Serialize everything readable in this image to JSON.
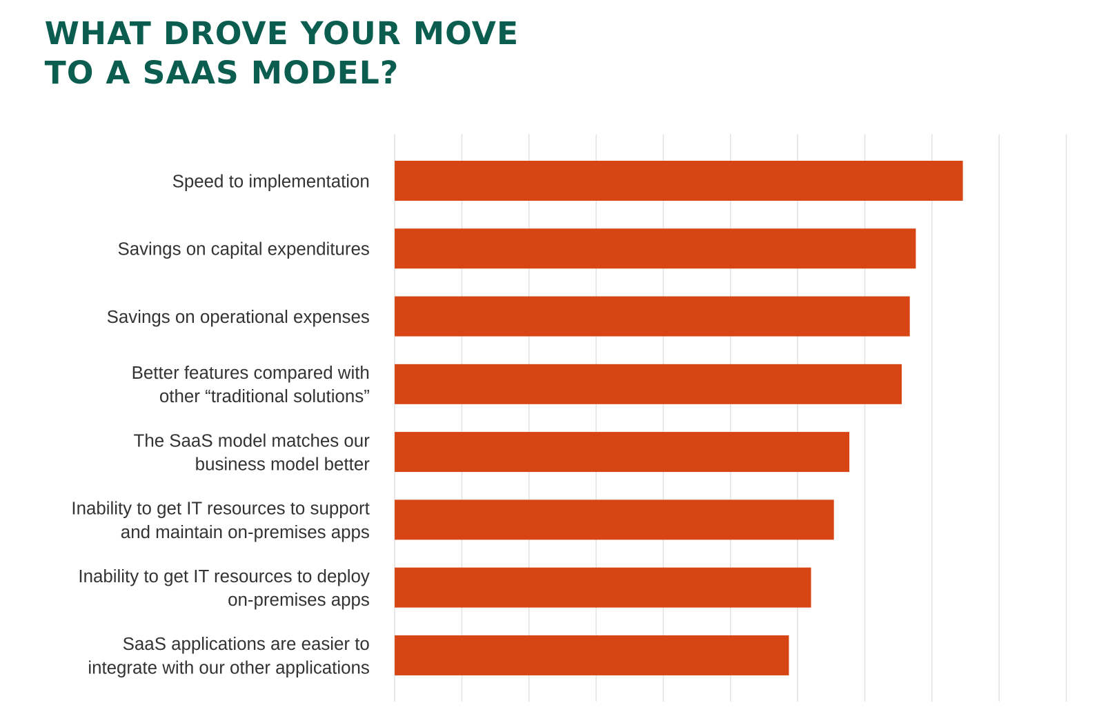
{
  "chart_data": {
    "type": "bar",
    "orientation": "horizontal",
    "title": [
      "WHAT DROVE YOUR MOVE",
      "TO A SAAS MODEL?"
    ],
    "categories": [
      [
        "Speed to implementation"
      ],
      [
        "Savings on capital expenditures"
      ],
      [
        "Savings on operational expenses"
      ],
      [
        "Better features compared with",
        "other “traditional  solutions”"
      ],
      [
        "The SaaS model matches our",
        "business model better"
      ],
      [
        "Inability to get IT resources to support",
        "and maintain on-premises apps"
      ],
      [
        "Inability to get IT resources to deploy",
        "on-premises apps"
      ],
      [
        "SaaS applications are easier to",
        "integrate with our other applications"
      ]
    ],
    "values": [
      84.6,
      77.6,
      76.7,
      75.5,
      67.7,
      65.4,
      62.0,
      58.7
    ],
    "color": "#d64513",
    "xlim": [
      0,
      100
    ],
    "xticks": [
      0,
      10,
      20,
      30,
      40,
      50,
      60,
      70,
      80,
      90,
      100
    ],
    "grid": true
  }
}
